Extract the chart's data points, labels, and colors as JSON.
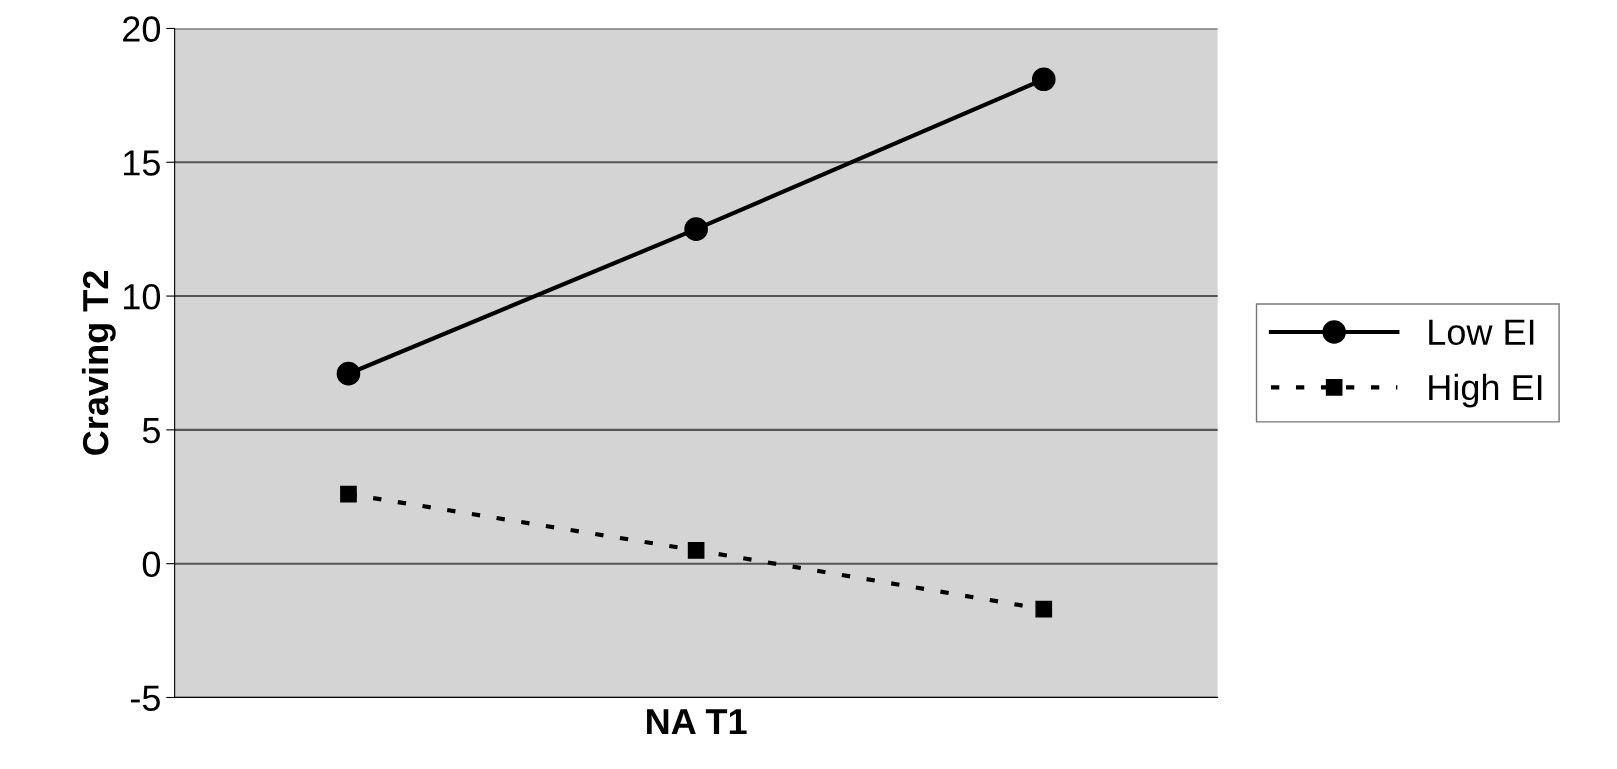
{
  "chart_data": {
    "type": "line",
    "xlabel": "NA T1",
    "ylabel": "Craving T2",
    "categories": [
      null,
      null,
      null
    ],
    "series": [
      {
        "name": "Low EI",
        "color": "#000000",
        "values": [
          7.1,
          12.5,
          18.1
        ],
        "marker": "circle",
        "line_style": "solid"
      },
      {
        "name": "High EI",
        "color": "#000000",
        "values": [
          2.6,
          0.5,
          -1.7
        ],
        "marker": "square",
        "line_style": "dotted"
      }
    ],
    "ylim": [
      -5,
      20
    ],
    "yticks": [
      -5,
      0,
      5,
      10,
      15,
      20
    ],
    "grid": "y",
    "legend": "right"
  }
}
